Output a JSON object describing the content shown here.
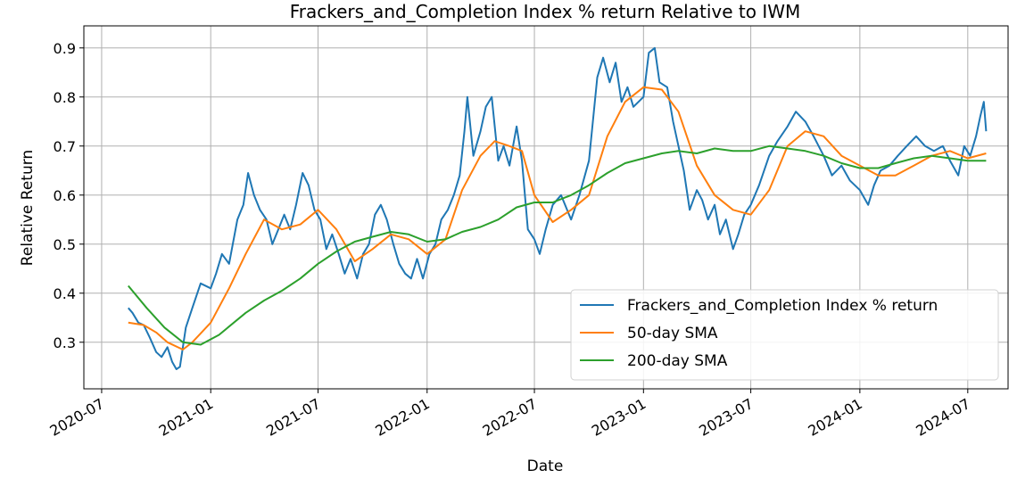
{
  "chart_data": {
    "type": "line",
    "title": "Frackers_and_Completion Index % return Relative to IWM",
    "xlabel": "Date",
    "ylabel": "Relative Return",
    "xlim": [
      "2020-06-01",
      "2024-09-07"
    ],
    "ylim": [
      0.205,
      0.945
    ],
    "grid": true,
    "legend_position": "lower-right",
    "x_ticks": [
      "2020-07",
      "2021-01",
      "2021-07",
      "2022-01",
      "2022-07",
      "2023-01",
      "2023-07",
      "2024-01",
      "2024-07"
    ],
    "y_ticks": [
      "0.3",
      "0.4",
      "0.5",
      "0.6",
      "0.7",
      "0.8",
      "0.9"
    ],
    "series": [
      {
        "name": "Frackers_and_Completion Index % return",
        "color": "#1f77b4",
        "points": [
          [
            "2020-08-15",
            0.37
          ],
          [
            "2020-08-22",
            0.36
          ],
          [
            "2020-09-01",
            0.34
          ],
          [
            "2020-09-10",
            0.335
          ],
          [
            "2020-09-20",
            0.31
          ],
          [
            "2020-10-01",
            0.28
          ],
          [
            "2020-10-10",
            0.27
          ],
          [
            "2020-10-20",
            0.29
          ],
          [
            "2020-10-28",
            0.26
          ],
          [
            "2020-11-04",
            0.245
          ],
          [
            "2020-11-10",
            0.25
          ],
          [
            "2020-11-20",
            0.33
          ],
          [
            "2020-12-01",
            0.37
          ],
          [
            "2020-12-15",
            0.42
          ],
          [
            "2021-01-01",
            0.41
          ],
          [
            "2021-01-10",
            0.44
          ],
          [
            "2021-01-20",
            0.48
          ],
          [
            "2021-02-01",
            0.46
          ],
          [
            "2021-02-15",
            0.55
          ],
          [
            "2021-02-25",
            0.58
          ],
          [
            "2021-03-05",
            0.645
          ],
          [
            "2021-03-15",
            0.6
          ],
          [
            "2021-03-25",
            0.57
          ],
          [
            "2021-04-05",
            0.55
          ],
          [
            "2021-04-15",
            0.5
          ],
          [
            "2021-04-25",
            0.53
          ],
          [
            "2021-05-05",
            0.56
          ],
          [
            "2021-05-15",
            0.53
          ],
          [
            "2021-05-25",
            0.58
          ],
          [
            "2021-06-05",
            0.645
          ],
          [
            "2021-06-15",
            0.62
          ],
          [
            "2021-06-25",
            0.57
          ],
          [
            "2021-07-05",
            0.55
          ],
          [
            "2021-07-15",
            0.49
          ],
          [
            "2021-07-25",
            0.52
          ],
          [
            "2021-08-05",
            0.48
          ],
          [
            "2021-08-15",
            0.44
          ],
          [
            "2021-08-25",
            0.47
          ],
          [
            "2021-09-05",
            0.43
          ],
          [
            "2021-09-15",
            0.48
          ],
          [
            "2021-09-25",
            0.5
          ],
          [
            "2021-10-05",
            0.56
          ],
          [
            "2021-10-15",
            0.58
          ],
          [
            "2021-10-25",
            0.55
          ],
          [
            "2021-11-05",
            0.5
          ],
          [
            "2021-11-15",
            0.46
          ],
          [
            "2021-11-25",
            0.44
          ],
          [
            "2021-12-05",
            0.43
          ],
          [
            "2021-12-15",
            0.47
          ],
          [
            "2021-12-25",
            0.43
          ],
          [
            "2022-01-05",
            0.48
          ],
          [
            "2022-01-15",
            0.5
          ],
          [
            "2022-01-25",
            0.55
          ],
          [
            "2022-02-05",
            0.57
          ],
          [
            "2022-02-15",
            0.6
          ],
          [
            "2022-02-25",
            0.64
          ],
          [
            "2022-03-05",
            0.73
          ],
          [
            "2022-03-10",
            0.8
          ],
          [
            "2022-03-20",
            0.68
          ],
          [
            "2022-04-01",
            0.73
          ],
          [
            "2022-04-10",
            0.78
          ],
          [
            "2022-04-20",
            0.8
          ],
          [
            "2022-05-01",
            0.67
          ],
          [
            "2022-05-10",
            0.7
          ],
          [
            "2022-05-20",
            0.66
          ],
          [
            "2022-06-01",
            0.74
          ],
          [
            "2022-06-10",
            0.67
          ],
          [
            "2022-06-20",
            0.53
          ],
          [
            "2022-07-01",
            0.51
          ],
          [
            "2022-07-10",
            0.48
          ],
          [
            "2022-07-20",
            0.53
          ],
          [
            "2022-08-01",
            0.58
          ],
          [
            "2022-08-15",
            0.6
          ],
          [
            "2022-09-01",
            0.55
          ],
          [
            "2022-09-15",
            0.6
          ],
          [
            "2022-10-01",
            0.67
          ],
          [
            "2022-10-15",
            0.84
          ],
          [
            "2022-10-25",
            0.88
          ],
          [
            "2022-11-05",
            0.83
          ],
          [
            "2022-11-15",
            0.87
          ],
          [
            "2022-11-25",
            0.79
          ],
          [
            "2022-12-05",
            0.82
          ],
          [
            "2022-12-15",
            0.78
          ],
          [
            "2023-01-01",
            0.8
          ],
          [
            "2023-01-10",
            0.89
          ],
          [
            "2023-01-20",
            0.9
          ],
          [
            "2023-01-28",
            0.83
          ],
          [
            "2023-02-10",
            0.82
          ],
          [
            "2023-02-20",
            0.75
          ],
          [
            "2023-03-01",
            0.7
          ],
          [
            "2023-03-10",
            0.65
          ],
          [
            "2023-03-20",
            0.57
          ],
          [
            "2023-04-01",
            0.61
          ],
          [
            "2023-04-10",
            0.59
          ],
          [
            "2023-04-20",
            0.55
          ],
          [
            "2023-05-01",
            0.58
          ],
          [
            "2023-05-10",
            0.52
          ],
          [
            "2023-05-20",
            0.55
          ],
          [
            "2023-06-01",
            0.49
          ],
          [
            "2023-06-10",
            0.52
          ],
          [
            "2023-06-20",
            0.56
          ],
          [
            "2023-07-01",
            0.58
          ],
          [
            "2023-07-15",
            0.62
          ],
          [
            "2023-08-01",
            0.68
          ],
          [
            "2023-08-15",
            0.71
          ],
          [
            "2023-09-01",
            0.74
          ],
          [
            "2023-09-15",
            0.77
          ],
          [
            "2023-10-01",
            0.75
          ],
          [
            "2023-10-15",
            0.72
          ],
          [
            "2023-11-01",
            0.68
          ],
          [
            "2023-11-15",
            0.64
          ],
          [
            "2023-12-01",
            0.66
          ],
          [
            "2023-12-15",
            0.63
          ],
          [
            "2024-01-01",
            0.61
          ],
          [
            "2024-01-15",
            0.58
          ],
          [
            "2024-01-25",
            0.62
          ],
          [
            "2024-02-05",
            0.65
          ],
          [
            "2024-02-20",
            0.66
          ],
          [
            "2024-03-05",
            0.68
          ],
          [
            "2024-03-20",
            0.7
          ],
          [
            "2024-04-05",
            0.72
          ],
          [
            "2024-04-20",
            0.7
          ],
          [
            "2024-05-05",
            0.69
          ],
          [
            "2024-05-20",
            0.7
          ],
          [
            "2024-06-01",
            0.67
          ],
          [
            "2024-06-15",
            0.64
          ],
          [
            "2024-06-25",
            0.7
          ],
          [
            "2024-07-05",
            0.68
          ],
          [
            "2024-07-15",
            0.72
          ],
          [
            "2024-07-22",
            0.76
          ],
          [
            "2024-07-28",
            0.79
          ],
          [
            "2024-08-01",
            0.73
          ]
        ]
      },
      {
        "name": "50-day SMA",
        "color": "#ff7f0e",
        "points": [
          [
            "2020-08-15",
            0.34
          ],
          [
            "2020-09-10",
            0.335
          ],
          [
            "2020-10-01",
            0.32
          ],
          [
            "2020-10-20",
            0.3
          ],
          [
            "2020-11-15",
            0.285
          ],
          [
            "2020-12-01",
            0.3
          ],
          [
            "2021-01-01",
            0.34
          ],
          [
            "2021-02-01",
            0.41
          ],
          [
            "2021-03-01",
            0.48
          ],
          [
            "2021-04-01",
            0.55
          ],
          [
            "2021-05-01",
            0.53
          ],
          [
            "2021-06-01",
            0.54
          ],
          [
            "2021-07-01",
            0.57
          ],
          [
            "2021-08-01",
            0.53
          ],
          [
            "2021-09-01",
            0.465
          ],
          [
            "2021-10-01",
            0.49
          ],
          [
            "2021-11-01",
            0.52
          ],
          [
            "2021-12-01",
            0.51
          ],
          [
            "2022-01-01",
            0.48
          ],
          [
            "2022-02-01",
            0.51
          ],
          [
            "2022-03-01",
            0.61
          ],
          [
            "2022-04-01",
            0.68
          ],
          [
            "2022-04-25",
            0.71
          ],
          [
            "2022-05-20",
            0.7
          ],
          [
            "2022-06-10",
            0.69
          ],
          [
            "2022-07-01",
            0.6
          ],
          [
            "2022-08-01",
            0.545
          ],
          [
            "2022-09-01",
            0.57
          ],
          [
            "2022-10-01",
            0.6
          ],
          [
            "2022-11-01",
            0.72
          ],
          [
            "2022-12-01",
            0.79
          ],
          [
            "2023-01-01",
            0.82
          ],
          [
            "2023-02-01",
            0.815
          ],
          [
            "2023-03-01",
            0.77
          ],
          [
            "2023-04-01",
            0.66
          ],
          [
            "2023-05-01",
            0.6
          ],
          [
            "2023-06-01",
            0.57
          ],
          [
            "2023-07-01",
            0.56
          ],
          [
            "2023-08-01",
            0.61
          ],
          [
            "2023-09-01",
            0.7
          ],
          [
            "2023-10-01",
            0.73
          ],
          [
            "2023-11-01",
            0.72
          ],
          [
            "2023-12-01",
            0.68
          ],
          [
            "2024-01-01",
            0.66
          ],
          [
            "2024-02-01",
            0.64
          ],
          [
            "2024-03-01",
            0.64
          ],
          [
            "2024-04-01",
            0.66
          ],
          [
            "2024-05-01",
            0.68
          ],
          [
            "2024-06-01",
            0.69
          ],
          [
            "2024-07-01",
            0.675
          ],
          [
            "2024-08-01",
            0.685
          ]
        ]
      },
      {
        "name": "200-day SMA",
        "color": "#2ca02c",
        "points": [
          [
            "2020-08-15",
            0.415
          ],
          [
            "2020-09-15",
            0.37
          ],
          [
            "2020-10-15",
            0.33
          ],
          [
            "2020-11-15",
            0.3
          ],
          [
            "2020-12-15",
            0.295
          ],
          [
            "2021-01-15",
            0.315
          ],
          [
            "2021-03-01",
            0.36
          ],
          [
            "2021-04-01",
            0.385
          ],
          [
            "2021-05-01",
            0.405
          ],
          [
            "2021-06-01",
            0.43
          ],
          [
            "2021-07-01",
            0.46
          ],
          [
            "2021-08-01",
            0.485
          ],
          [
            "2021-09-01",
            0.505
          ],
          [
            "2021-10-01",
            0.515
          ],
          [
            "2021-11-01",
            0.525
          ],
          [
            "2021-12-01",
            0.52
          ],
          [
            "2022-01-01",
            0.505
          ],
          [
            "2022-02-01",
            0.51
          ],
          [
            "2022-03-01",
            0.525
          ],
          [
            "2022-04-01",
            0.535
          ],
          [
            "2022-05-01",
            0.55
          ],
          [
            "2022-06-01",
            0.575
          ],
          [
            "2022-07-01",
            0.585
          ],
          [
            "2022-08-01",
            0.585
          ],
          [
            "2022-09-01",
            0.6
          ],
          [
            "2022-10-01",
            0.62
          ],
          [
            "2022-11-01",
            0.645
          ],
          [
            "2022-12-01",
            0.665
          ],
          [
            "2023-01-01",
            0.675
          ],
          [
            "2023-02-01",
            0.685
          ],
          [
            "2023-03-01",
            0.69
          ],
          [
            "2023-04-01",
            0.685
          ],
          [
            "2023-05-01",
            0.695
          ],
          [
            "2023-06-01",
            0.69
          ],
          [
            "2023-07-01",
            0.69
          ],
          [
            "2023-08-01",
            0.7
          ],
          [
            "2023-09-01",
            0.695
          ],
          [
            "2023-10-01",
            0.69
          ],
          [
            "2023-11-01",
            0.68
          ],
          [
            "2023-12-01",
            0.665
          ],
          [
            "2024-01-01",
            0.655
          ],
          [
            "2024-02-01",
            0.655
          ],
          [
            "2024-03-01",
            0.665
          ],
          [
            "2024-04-01",
            0.675
          ],
          [
            "2024-05-01",
            0.68
          ],
          [
            "2024-06-01",
            0.675
          ],
          [
            "2024-07-01",
            0.67
          ],
          [
            "2024-08-01",
            0.67
          ]
        ]
      }
    ]
  }
}
